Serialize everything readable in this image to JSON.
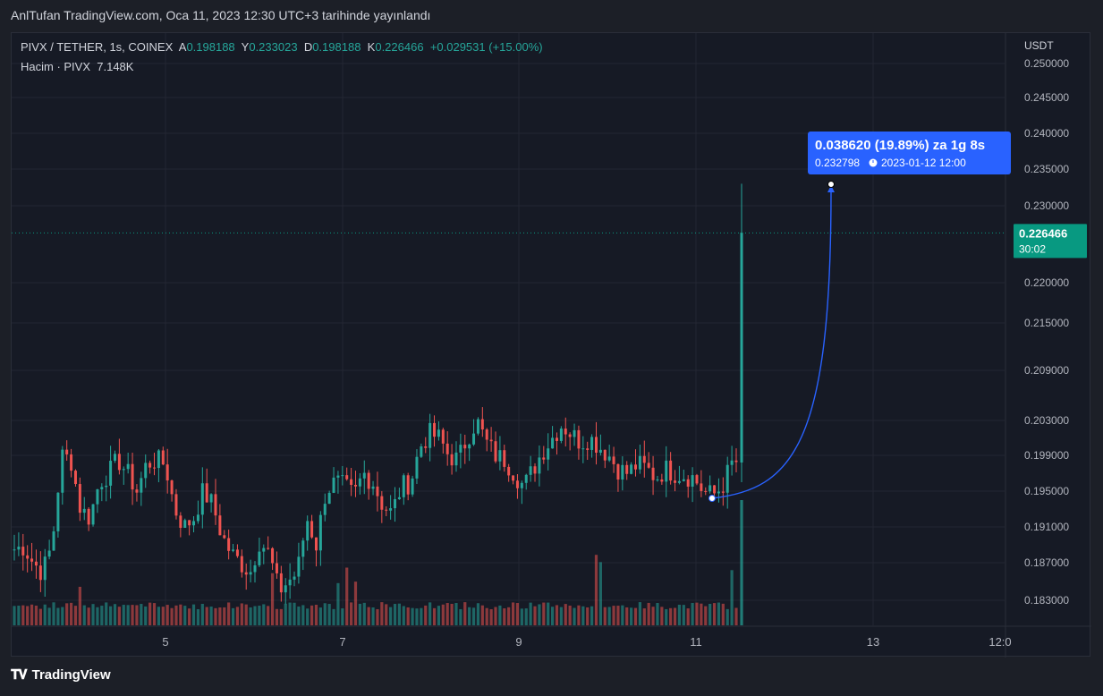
{
  "header": {
    "publish_text": "AnlTufan TradingView.com, Oca 11, 2023 12:30 UTC+3 tarihinde yayınlandı"
  },
  "legend": {
    "symbol": "PIVX / TETHER, 1s, COINEX",
    "open_label": "A",
    "open": "0.198188",
    "high_label": "Y",
    "high": "0.233023",
    "low_label": "D",
    "low": "0.198188",
    "close_label": "K",
    "close": "0.226466",
    "change": "+0.029531 (+15.00%)",
    "volume_label": "Hacim · PIVX",
    "volume": "7.148K"
  },
  "axis": {
    "currency": "USDT",
    "price_ticks": [
      {
        "label": "0.250000",
        "value": 0.25
      },
      {
        "label": "0.245000",
        "value": 0.245
      },
      {
        "label": "0.240000",
        "value": 0.24
      },
      {
        "label": "0.235000",
        "value": 0.235
      },
      {
        "label": "0.230000",
        "value": 0.23
      },
      {
        "label": "0.220000",
        "value": 0.22
      },
      {
        "label": "0.215000",
        "value": 0.215
      },
      {
        "label": "0.209000",
        "value": 0.209
      },
      {
        "label": "0.203000",
        "value": 0.203
      },
      {
        "label": "0.199000",
        "value": 0.199
      },
      {
        "label": "0.195000",
        "value": 0.195
      },
      {
        "label": "0.191000",
        "value": 0.191
      },
      {
        "label": "0.187000",
        "value": 0.187
      },
      {
        "label": "0.183000",
        "value": 0.183
      }
    ],
    "time_ticks": [
      "5",
      "7",
      "9",
      "11",
      "13",
      "12:0"
    ]
  },
  "price_marker": {
    "price": "0.226466",
    "countdown": "30:02",
    "color": "#089981"
  },
  "projection": {
    "change_text": "0.038620 (19.89%) za 1g 8s",
    "target_price": "0.232798",
    "target_time": "2023-01-12  12:00",
    "start_price": 0.1942,
    "end_price": 0.2328,
    "color": "#2962ff"
  },
  "brand": {
    "name": "TradingView"
  },
  "colors": {
    "up": "#26a69a",
    "down": "#ef5350",
    "background": "#161a25",
    "grid": "#232632"
  },
  "chart_data": {
    "type": "candlestick",
    "title": "PIVX / TETHER, 1s, COINEX",
    "ylabel": "USDT",
    "ylim": [
      0.18,
      0.252
    ],
    "scale": "log",
    "x_ticks": [
      "5",
      "7",
      "9",
      "11",
      "13"
    ],
    "series": [
      {
        "name": "PIVX / TETHER",
        "close_path": [
          0.1885,
          0.1888,
          0.187,
          0.186,
          0.189,
          0.199,
          0.1985,
          0.193,
          0.192,
          0.196,
          0.197,
          0.1985,
          0.197,
          0.195,
          0.198,
          0.1985,
          0.198,
          0.193,
          0.191,
          0.192,
          0.195,
          0.1935,
          0.19,
          0.188,
          0.187,
          0.186,
          0.1895,
          0.188,
          0.184,
          0.185,
          0.186,
          0.192,
          0.189,
          0.195,
          0.196,
          0.1955,
          0.1945,
          0.197,
          0.196,
          0.1935,
          0.1925,
          0.1955,
          0.196,
          0.2,
          0.2015,
          0.201,
          0.199,
          0.1985,
          0.201,
          0.203,
          0.2005,
          0.199,
          0.1985,
          0.197,
          0.1955,
          0.1975,
          0.1995,
          0.201,
          0.2025,
          0.2015,
          0.2005,
          0.201,
          0.2,
          0.199,
          0.1975,
          0.197,
          0.198,
          0.1975,
          0.1965,
          0.1975,
          0.197,
          0.1968,
          0.1965,
          0.195,
          0.1945,
          0.1955,
          0.198,
          0.1985,
          0.2265
        ]
      },
      {
        "name": "Hacim · PIVX",
        "last": "7.148K"
      }
    ],
    "last_price": 0.226466
  }
}
